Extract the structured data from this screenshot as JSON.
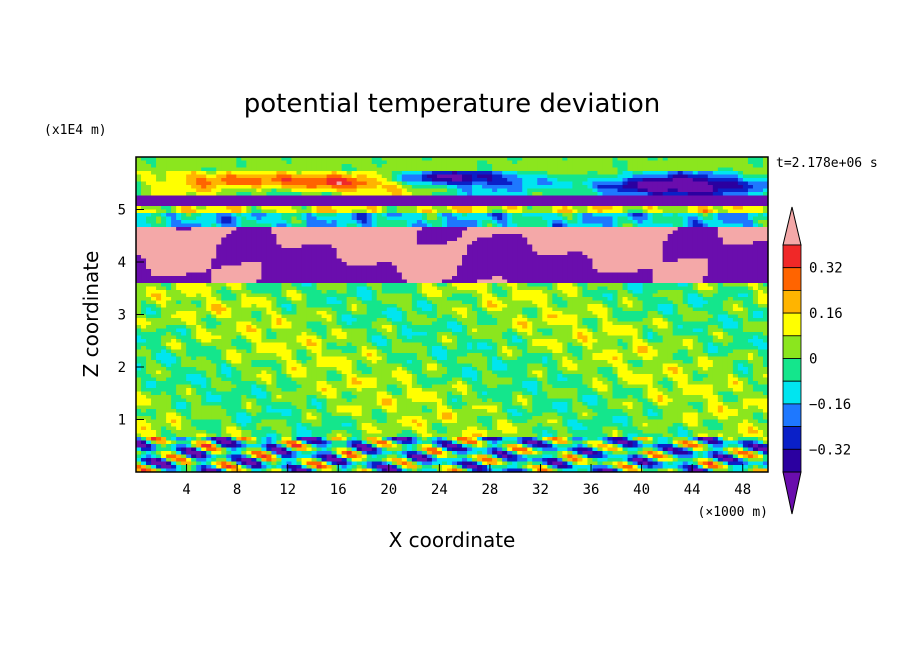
{
  "chart_data": {
    "type": "heatmap",
    "title": "potential temperature deviation",
    "xlabel": "X coordinate",
    "ylabel": "Z coordinate",
    "x_unit": "(×1000 m)",
    "y_unit": "(x1E4 m)",
    "time_label": "t=2.178e+06 s",
    "xlim": [
      0,
      50
    ],
    "ylim": [
      0,
      6
    ],
    "x_ticks": [
      "4",
      "8",
      "12",
      "16",
      "20",
      "24",
      "28",
      "32",
      "36",
      "40",
      "44",
      "48"
    ],
    "y_ticks": [
      "1",
      "2",
      "3",
      "4",
      "5"
    ],
    "colorbar": {
      "levels": [
        -0.4,
        -0.32,
        -0.24,
        -0.16,
        -0.08,
        0,
        0.08,
        0.16,
        0.24,
        0.32,
        0.4
      ],
      "colors": [
        "#6a0dad",
        "#2b00a0",
        "#0a20c8",
        "#1e78ff",
        "#00e5f0",
        "#14e68c",
        "#8be61e",
        "#ffff00",
        "#ffb400",
        "#ff6400",
        "#f02828",
        "#f4a8a8"
      ],
      "labels": [
        "0.32",
        "0.16",
        "0",
        "−0.16",
        "−0.32"
      ]
    },
    "grid": false
  }
}
